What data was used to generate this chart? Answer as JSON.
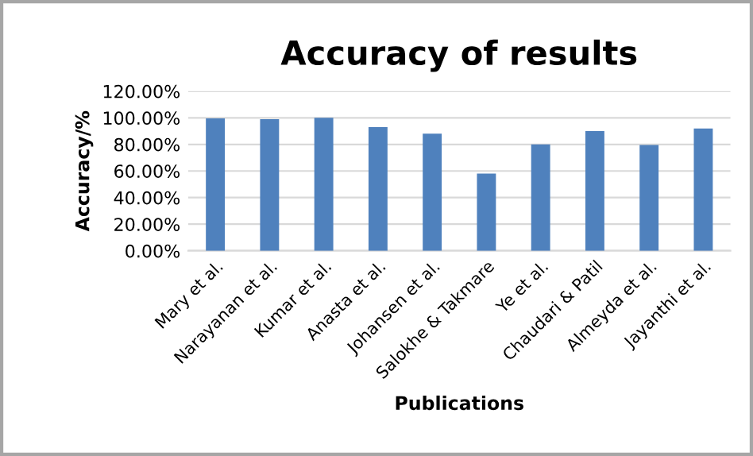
{
  "chart_data": {
    "type": "bar",
    "title": "Accuracy of results",
    "xlabel": "Publications",
    "ylabel": "Accuracy/%",
    "categories": [
      "Mary et al.",
      "Narayanan et al.",
      "Kumar et al.",
      "Anasta et al.",
      "Johansen et al.",
      "Salokhe & Takmare",
      "Ye et al.",
      "Chaudari & Patil",
      "Almeyda et al.",
      "Jayanthi et al."
    ],
    "values": [
      99.5,
      99,
      100,
      93,
      88,
      58,
      80,
      90,
      79.5,
      92
    ],
    "color": "#4f81bd",
    "ylim": [
      0,
      120
    ],
    "yticks": [
      {
        "value": 0,
        "label": "0.00%"
      },
      {
        "value": 20,
        "label": "20.00%"
      },
      {
        "value": 40,
        "label": "40.00%"
      },
      {
        "value": 60,
        "label": "60.00%"
      },
      {
        "value": 80,
        "label": "80.00%"
      },
      {
        "value": 100,
        "label": "100.00%"
      },
      {
        "value": 120,
        "label": "120.00%"
      }
    ],
    "grid": "y"
  }
}
